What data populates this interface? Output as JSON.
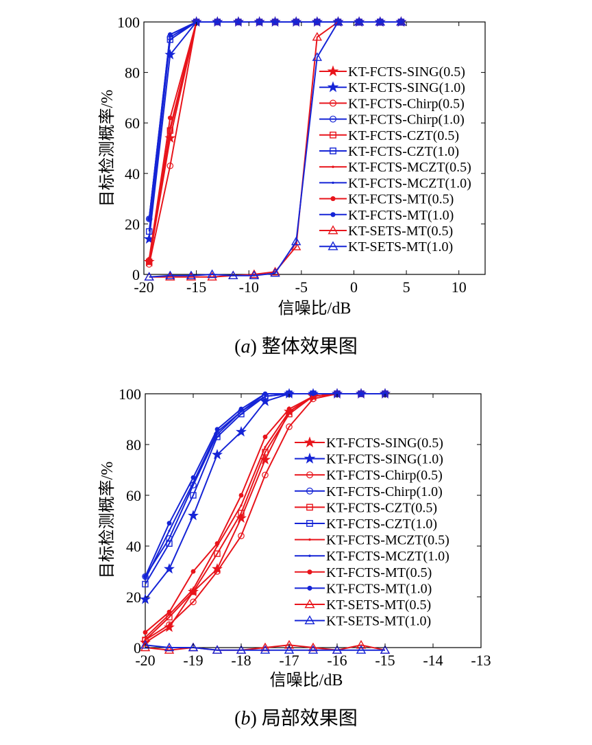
{
  "chart_data": [
    {
      "type": "line",
      "caption_label": "a",
      "caption_text": "整体效果图",
      "xlabel": "信噪比/dB",
      "ylabel": "目标检测概率/%",
      "xlim": [
        -20,
        12.5
      ],
      "ylim": [
        0,
        100
      ],
      "xticks": [
        -20,
        -15,
        -10,
        -5,
        0,
        5,
        10
      ],
      "yticks": [
        0,
        20,
        40,
        60,
        80,
        100
      ],
      "grid": false,
      "legend_position": "right",
      "series": [
        {
          "name": "KT-FCTS-SING(0.5)",
          "color": "#e8141b",
          "marker": "star",
          "x": [
            -19.5,
            -17.5,
            -15,
            -13,
            -11,
            -9,
            -7.5,
            -5.5,
            -3.5,
            -1.5,
            0.5,
            2.5,
            4.5
          ],
          "y": [
            5,
            54,
            100,
            100,
            100,
            100,
            100,
            100,
            100,
            100,
            100,
            100,
            100
          ]
        },
        {
          "name": "KT-FCTS-SING(1.0)",
          "color": "#1524d6",
          "marker": "star",
          "x": [
            -19.5,
            -17.5,
            -15,
            -13,
            -11,
            -9,
            -7.5,
            -5.5,
            -3.5,
            -1.5,
            0.5,
            2.5,
            4.5
          ],
          "y": [
            14,
            87,
            100,
            100,
            100,
            100,
            100,
            100,
            100,
            100,
            100,
            100,
            100
          ]
        },
        {
          "name": "KT-FCTS-Chirp(0.5)",
          "color": "#e8141b",
          "marker": "circle",
          "x": [
            -19.5,
            -17.5,
            -15,
            -13,
            -11,
            -9,
            -7.5,
            -5.5,
            -3.5,
            -1.5,
            0.5,
            2.5,
            4.5
          ],
          "y": [
            4,
            43,
            100,
            100,
            100,
            100,
            100,
            100,
            100,
            100,
            100,
            100,
            100
          ]
        },
        {
          "name": "KT-FCTS-Chirp(1.0)",
          "color": "#1524d6",
          "marker": "circle",
          "x": [
            -19.5,
            -17.5,
            -15,
            -13,
            -11,
            -9,
            -7.5,
            -5.5,
            -3.5,
            -1.5,
            0.5,
            2.5,
            4.5
          ],
          "y": [
            22,
            94,
            100,
            100,
            100,
            100,
            100,
            100,
            100,
            100,
            100,
            100,
            100
          ]
        },
        {
          "name": "KT-FCTS-CZT(0.5)",
          "color": "#e8141b",
          "marker": "square",
          "x": [
            -19.5,
            -17.5,
            -15,
            -13,
            -11,
            -9,
            -7.5,
            -5.5,
            -3.5,
            -1.5,
            0.5,
            2.5,
            4.5
          ],
          "y": [
            5,
            57,
            100,
            100,
            100,
            100,
            100,
            100,
            100,
            100,
            100,
            100,
            100
          ]
        },
        {
          "name": "KT-FCTS-CZT(1.0)",
          "color": "#1524d6",
          "marker": "square",
          "x": [
            -19.5,
            -17.5,
            -15,
            -13,
            -11,
            -9,
            -7.5,
            -5.5,
            -3.5,
            -1.5,
            0.5,
            2.5,
            4.5
          ],
          "y": [
            17,
            93,
            100,
            100,
            100,
            100,
            100,
            100,
            100,
            100,
            100,
            100,
            100
          ]
        },
        {
          "name": "KT-FCTS-MCZT(0.5)",
          "color": "#e8141b",
          "marker": "point",
          "x": [
            -19.5,
            -17.5,
            -15,
            -13,
            -11,
            -9,
            -7.5,
            -5.5,
            -3.5,
            -1.5,
            0.5,
            2.5,
            4.5
          ],
          "y": [
            5,
            58,
            100,
            100,
            100,
            100,
            100,
            100,
            100,
            100,
            100,
            100,
            100
          ]
        },
        {
          "name": "KT-FCTS-MCZT(1.0)",
          "color": "#1524d6",
          "marker": "point",
          "x": [
            -19.5,
            -17.5,
            -15,
            -13,
            -11,
            -9,
            -7.5,
            -5.5,
            -3.5,
            -1.5,
            0.5,
            2.5,
            4.5
          ],
          "y": [
            22,
            95,
            100,
            100,
            100,
            100,
            100,
            100,
            100,
            100,
            100,
            100,
            100
          ]
        },
        {
          "name": "KT-FCTS-MT(0.5)",
          "color": "#e8141b",
          "marker": "dot",
          "x": [
            -19.5,
            -17.5,
            -15,
            -13,
            -11,
            -9,
            -7.5,
            -5.5,
            -3.5,
            -1.5,
            0.5,
            2.5,
            4.5
          ],
          "y": [
            6,
            62,
            100,
            100,
            100,
            100,
            100,
            100,
            100,
            100,
            100,
            100,
            100
          ]
        },
        {
          "name": "KT-FCTS-MT(1.0)",
          "color": "#1524d6",
          "marker": "dot",
          "x": [
            -19.5,
            -17.5,
            -15,
            -13,
            -11,
            -9,
            -7.5,
            -5.5,
            -3.5,
            -1.5,
            0.5,
            2.5,
            4.5
          ],
          "y": [
            22,
            95,
            100,
            100,
            100,
            100,
            100,
            100,
            100,
            100,
            100,
            100,
            100
          ]
        },
        {
          "name": "KT-SETS-MT(0.5)",
          "color": "#e8141b",
          "marker": "triangle",
          "x": [
            -19.5,
            -17.5,
            -15.5,
            -13.5,
            -11.5,
            -9.5,
            -7.5,
            -5.5,
            -3.5,
            -1.5,
            0.5,
            2.5,
            4.5
          ],
          "y": [
            -1,
            -1,
            -1,
            -1,
            -0.5,
            0,
            1,
            11,
            94,
            100,
            100,
            100,
            100
          ]
        },
        {
          "name": "KT-SETS-MT(1.0)",
          "color": "#1524d6",
          "marker": "triangle",
          "x": [
            -19.5,
            -17.5,
            -15.5,
            -13.5,
            -11.5,
            -9.5,
            -7.5,
            -5.5,
            -3.5,
            -1.5,
            0.5,
            2.5,
            4.5
          ],
          "y": [
            -1,
            -0.5,
            -0.5,
            0,
            -0.5,
            -0.5,
            0.5,
            13,
            86,
            100,
            100,
            100,
            100
          ]
        }
      ]
    },
    {
      "type": "line",
      "caption_label": "b",
      "caption_text": "局部效果图",
      "xlabel": "信噪比/dB",
      "ylabel": "目标检测概率/%",
      "xlim": [
        -20,
        -13
      ],
      "ylim": [
        0,
        100
      ],
      "xticks": [
        -20,
        -19,
        -18,
        -17,
        -16,
        -15,
        -14,
        -13
      ],
      "yticks": [
        0,
        20,
        40,
        60,
        80,
        100
      ],
      "grid": false,
      "legend_position": "right",
      "series": [
        {
          "name": "KT-FCTS-SING(0.5)",
          "color": "#e8141b",
          "marker": "star",
          "x": [
            -20,
            -19.5,
            -19,
            -18.5,
            -18,
            -17.5,
            -17,
            -16.5,
            -16,
            -15.5,
            -15
          ],
          "y": [
            2,
            8,
            22,
            31,
            51,
            74,
            93,
            99,
            100,
            100,
            100
          ]
        },
        {
          "name": "KT-FCTS-SING(1.0)",
          "color": "#1524d6",
          "marker": "star",
          "x": [
            -20,
            -19.5,
            -19,
            -18.5,
            -18,
            -17.5,
            -17,
            -16.5,
            -16,
            -15.5,
            -15
          ],
          "y": [
            19,
            31,
            52,
            76,
            85,
            97,
            100,
            100,
            100,
            100,
            100
          ]
        },
        {
          "name": "KT-FCTS-Chirp(0.5)",
          "color": "#e8141b",
          "marker": "circle",
          "x": [
            -20,
            -19.5,
            -19,
            -18.5,
            -18,
            -17.5,
            -17,
            -16.5,
            -16,
            -15.5,
            -15
          ],
          "y": [
            3,
            9,
            18,
            30,
            44,
            68,
            87,
            98,
            100,
            100,
            100
          ]
        },
        {
          "name": "KT-FCTS-Chirp(1.0)",
          "color": "#1524d6",
          "marker": "circle",
          "x": [
            -20,
            -19.5,
            -19,
            -18.5,
            -18,
            -17.5,
            -17,
            -16.5,
            -16,
            -15.5,
            -15
          ],
          "y": [
            28,
            43,
            64,
            84,
            93,
            99,
            100,
            100,
            100,
            100,
            100
          ]
        },
        {
          "name": "KT-FCTS-CZT(0.5)",
          "color": "#e8141b",
          "marker": "square",
          "x": [
            -20,
            -19.5,
            -19,
            -18.5,
            -18,
            -17.5,
            -17,
            -16.5,
            -16,
            -15.5,
            -15
          ],
          "y": [
            3,
            12,
            22,
            37,
            53,
            77,
            92,
            99,
            100,
            100,
            100
          ]
        },
        {
          "name": "KT-FCTS-CZT(1.0)",
          "color": "#1524d6",
          "marker": "square",
          "x": [
            -20,
            -19.5,
            -19,
            -18.5,
            -18,
            -17.5,
            -17,
            -16.5,
            -16,
            -15.5,
            -15
          ],
          "y": [
            25,
            41,
            60,
            83,
            92,
            99,
            100,
            100,
            100,
            100,
            100
          ]
        },
        {
          "name": "KT-FCTS-MCZT(0.5)",
          "color": "#e8141b",
          "marker": "point",
          "x": [
            -20,
            -19.5,
            -19,
            -18.5,
            -18,
            -17.5,
            -17,
            -16.5,
            -16,
            -15.5,
            -15
          ],
          "y": [
            4,
            13,
            23,
            40,
            56,
            79,
            93,
            99,
            100,
            100,
            100
          ]
        },
        {
          "name": "KT-FCTS-MCZT(1.0)",
          "color": "#1524d6",
          "marker": "point",
          "x": [
            -20,
            -19.5,
            -19,
            -18.5,
            -18,
            -17.5,
            -17,
            -16.5,
            -16,
            -15.5,
            -15
          ],
          "y": [
            27,
            46,
            65,
            85,
            93,
            100,
            100,
            100,
            100,
            100,
            100
          ]
        },
        {
          "name": "KT-FCTS-MT(0.5)",
          "color": "#e8141b",
          "marker": "dot",
          "x": [
            -20,
            -19.5,
            -19,
            -18.5,
            -18,
            -17.5,
            -17,
            -16.5,
            -16,
            -15.5,
            -15
          ],
          "y": [
            6,
            14,
            30,
            41,
            60,
            83,
            94,
            99,
            100,
            100,
            100
          ]
        },
        {
          "name": "KT-FCTS-MT(1.0)",
          "color": "#1524d6",
          "marker": "dot",
          "x": [
            -20,
            -19.5,
            -19,
            -18.5,
            -18,
            -17.5,
            -17,
            -16.5,
            -16,
            -15.5,
            -15
          ],
          "y": [
            28,
            49,
            67,
            86,
            94,
            100,
            100,
            100,
            100,
            100,
            100
          ]
        },
        {
          "name": "KT-SETS-MT(0.5)",
          "color": "#e8141b",
          "marker": "triangle",
          "x": [
            -20,
            -19.5,
            -19,
            -18.5,
            -18,
            -17.5,
            -17,
            -16.5,
            -16,
            -15.5,
            -15
          ],
          "y": [
            0,
            -1,
            0,
            -1,
            -1,
            0,
            1,
            0,
            -1,
            1,
            -1
          ]
        },
        {
          "name": "KT-SETS-MT(1.0)",
          "color": "#1524d6",
          "marker": "triangle",
          "x": [
            -20,
            -19.5,
            -19,
            -18.5,
            -18,
            -17.5,
            -17,
            -16.5,
            -16,
            -15.5,
            -15
          ],
          "y": [
            1,
            0,
            0,
            -1,
            -1,
            -1,
            -1,
            -1,
            -1,
            -1,
            -1
          ]
        }
      ]
    }
  ]
}
